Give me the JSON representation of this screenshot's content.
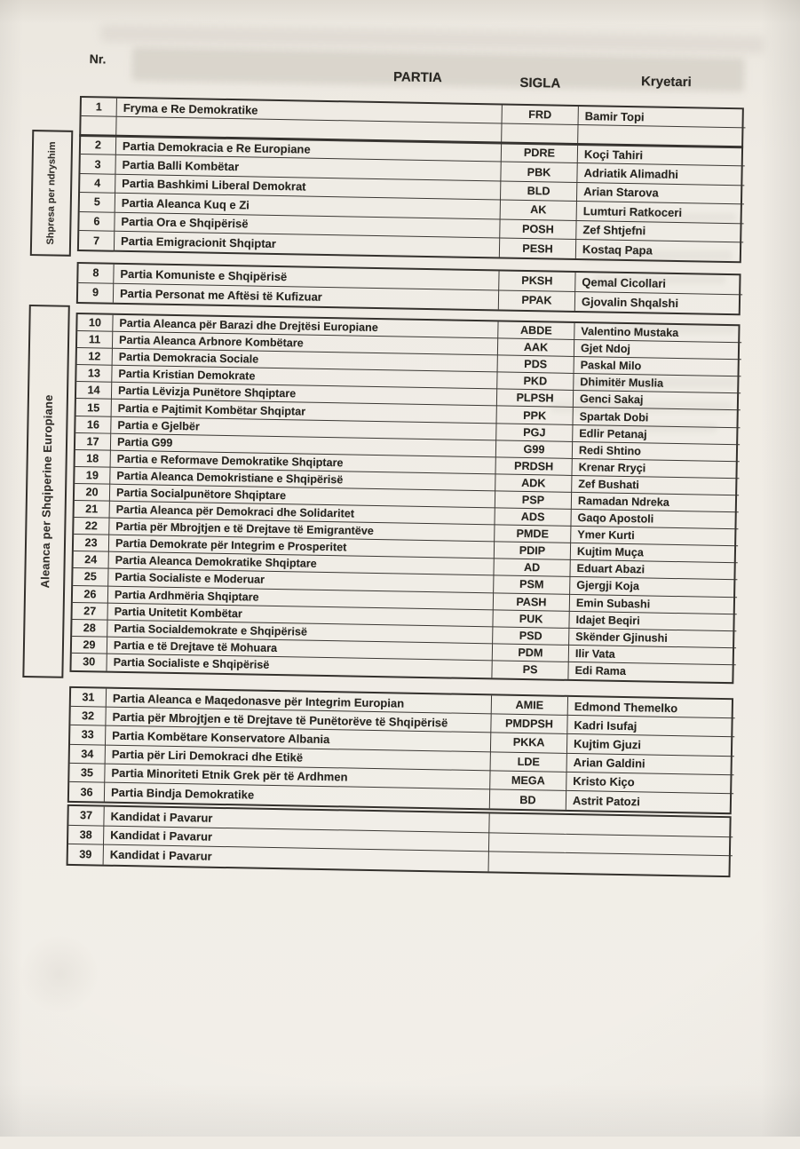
{
  "document_type": "scanned party list",
  "colors": {
    "paper": "#efebe4",
    "ink": "#26241f",
    "table_border": "#35332f",
    "header_band": "#c9c4bb"
  },
  "header": {
    "nr": "Nr.",
    "partia": "PARTIA",
    "sigla": "SIGLA",
    "kryetari": "Kryetari"
  },
  "side_labels": [
    {
      "text": "Shpresa per ndryshim"
    },
    {
      "text": "Aleanca per Shqiperine Europiane"
    }
  ],
  "table": {
    "columns": [
      "Nr.",
      "PARTIA",
      "SIGLA",
      "Kryetari"
    ],
    "sections": [
      {
        "id": "a",
        "rows": [
          {
            "nr": "1",
            "partia": "Fryma e Re Demokratike",
            "sigla": "FRD",
            "kryetari": "Bamir Topi"
          },
          {
            "nr": "",
            "partia": "",
            "sigla": "",
            "kryetari": ""
          }
        ]
      },
      {
        "id": "b",
        "group_label": "Shpresa per ndryshim",
        "rows": [
          {
            "nr": "2",
            "partia": "Partia Demokracia e Re Europiane",
            "sigla": "PDRE",
            "kryetari": "Koçi Tahiri"
          },
          {
            "nr": "3",
            "partia": "Partia Balli Kombëtar",
            "sigla": "PBK",
            "kryetari": "Adriatik Alimadhi"
          },
          {
            "nr": "4",
            "partia": "Partia Bashkimi Liberal Demokrat",
            "sigla": "BLD",
            "kryetari": "Arian Starova"
          },
          {
            "nr": "5",
            "partia": "Partia Aleanca Kuq e Zi",
            "sigla": "AK",
            "kryetari": "Lumturi Ratkoceri"
          },
          {
            "nr": "6",
            "partia": "Partia Ora e Shqipërisë",
            "sigla": "POSH",
            "kryetari": "Zef Shtjefni"
          },
          {
            "nr": "7",
            "partia": "Partia Emigracionit Shqiptar",
            "sigla": "PESH",
            "kryetari": "Kostaq Papa"
          }
        ]
      },
      {
        "id": "c",
        "rows": [
          {
            "nr": "8",
            "partia": "Partia Komuniste e Shqipërisë",
            "sigla": "PKSH",
            "kryetari": "Qemal Cicollari"
          },
          {
            "nr": "9",
            "partia": "Partia Personat me Aftësi të Kufizuar",
            "sigla": "PPAK",
            "kryetari": "Gjovalin Shqalshi"
          }
        ]
      },
      {
        "id": "d",
        "group_label": "Aleanca per Shqiperine Europiane",
        "rows": [
          {
            "nr": "10",
            "partia": "Partia Aleanca për Barazi dhe Drejtësi Europiane",
            "sigla": "ABDE",
            "kryetari": "Valentino Mustaka"
          },
          {
            "nr": "11",
            "partia": "Partia Aleanca Arbnore Kombëtare",
            "sigla": "AAK",
            "kryetari": "Gjet Ndoj"
          },
          {
            "nr": "12",
            "partia": "Partia Demokracia Sociale",
            "sigla": "PDS",
            "kryetari": "Paskal Milo"
          },
          {
            "nr": "13",
            "partia": "Partia Kristian Demokrate",
            "sigla": "PKD",
            "kryetari": "Dhimitër Muslia"
          },
          {
            "nr": "14",
            "partia": "Partia Lëvizja Punëtore Shqiptare",
            "sigla": "PLPSH",
            "kryetari": "Genci Sakaj"
          },
          {
            "nr": "15",
            "partia": "Partia e Pajtimit Kombëtar Shqiptar",
            "sigla": "PPK",
            "kryetari": "Spartak Dobi"
          },
          {
            "nr": "16",
            "partia": "Partia e Gjelbër",
            "sigla": "PGJ",
            "kryetari": "Edlir Petanaj"
          },
          {
            "nr": "17",
            "partia": "Partia G99",
            "sigla": "G99",
            "kryetari": "Redi Shtino"
          },
          {
            "nr": "18",
            "partia": "Partia e Reformave Demokratike Shqiptare",
            "sigla": "PRDSH",
            "kryetari": "Krenar Rryçi"
          },
          {
            "nr": "19",
            "partia": "Partia Aleanca Demokristiane e Shqipërisë",
            "sigla": "ADK",
            "kryetari": "Zef Bushati"
          },
          {
            "nr": "20",
            "partia": "Partia Socialpunëtore Shqiptare",
            "sigla": "PSP",
            "kryetari": "Ramadan Ndreka"
          },
          {
            "nr": "21",
            "partia": "Partia Aleanca për Demokraci dhe Solidaritet",
            "sigla": "ADS",
            "kryetari": "Gaqo Apostoli"
          },
          {
            "nr": "22",
            "partia": "Partia për Mbrojtjen e të Drejtave të Emigrantëve",
            "sigla": "PMDE",
            "kryetari": "Ymer Kurti"
          },
          {
            "nr": "23",
            "partia": "Partia Demokrate për Integrim e Prosperitet",
            "sigla": "PDIP",
            "kryetari": "Kujtim Muça"
          },
          {
            "nr": "24",
            "partia": "Partia Aleanca Demokratike Shqiptare",
            "sigla": "AD",
            "kryetari": "Eduart Abazi"
          },
          {
            "nr": "25",
            "partia": "Partia Socialiste e Moderuar",
            "sigla": "PSM",
            "kryetari": "Gjergji Koja"
          },
          {
            "nr": "26",
            "partia": "Partia Ardhmëria Shqiptare",
            "sigla": "PASH",
            "kryetari": "Emin Subashi"
          },
          {
            "nr": "27",
            "partia": "Partia Unitetit Kombëtar",
            "sigla": "PUK",
            "kryetari": "Idajet Beqiri"
          },
          {
            "nr": "28",
            "partia": "Partia Socialdemokrate e Shqipërisë",
            "sigla": "PSD",
            "kryetari": "Skënder Gjinushi"
          },
          {
            "nr": "29",
            "partia": "Partia e të Drejtave të Mohuara",
            "sigla": "PDM",
            "kryetari": "Ilir Vata"
          },
          {
            "nr": "30",
            "partia": "Partia Socialiste e Shqipërisë",
            "sigla": "PS",
            "kryetari": "Edi Rama"
          }
        ]
      },
      {
        "id": "e",
        "rows": [
          {
            "nr": "31",
            "partia": "Partia Aleanca e Maqedonasve për Integrim Europian",
            "sigla": "AMIE",
            "kryetari": "Edmond Themelko"
          },
          {
            "nr": "32",
            "partia": "Partia për Mbrojtjen e të Drejtave të Punëtorëve të Shqipërisë",
            "sigla": "PMDPSH",
            "kryetari": "Kadri Isufaj"
          },
          {
            "nr": "33",
            "partia": "Partia Kombëtare Konservatore Albania",
            "sigla": "PKKA",
            "kryetari": "Kujtim Gjuzi"
          },
          {
            "nr": "34",
            "partia": "Partia për Liri Demokraci dhe Etikë",
            "sigla": "LDE",
            "kryetari": "Arian Galdini"
          },
          {
            "nr": "35",
            "partia": "Partia Minoriteti Etnik Grek për të Ardhmen",
            "sigla": "MEGA",
            "kryetari": "Kristo Kiço"
          },
          {
            "nr": "36",
            "partia": "Partia Bindja Demokratike",
            "sigla": "BD",
            "kryetari": "Astrit Patozi"
          }
        ]
      },
      {
        "id": "f",
        "rows": [
          {
            "nr": "37",
            "partia": "Kandidat i Pavarur",
            "sigla": "",
            "kryetari": ""
          },
          {
            "nr": "38",
            "partia": "Kandidat i Pavarur",
            "sigla": "",
            "kryetari": ""
          },
          {
            "nr": "39",
            "partia": "Kandidat i Pavarur",
            "sigla": "",
            "kryetari": ""
          }
        ]
      }
    ]
  }
}
